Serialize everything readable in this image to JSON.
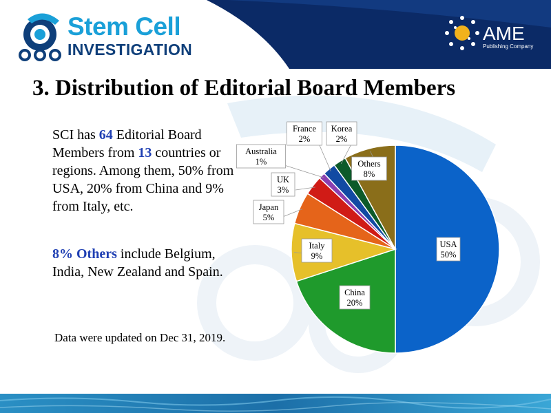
{
  "header": {
    "journal_name": "Stem Cell",
    "journal_subtitle": "INVESTIGATION",
    "publisher_name": "AME",
    "publisher_subtitle": "Publishing Company",
    "logo_icon": "stem-cell-gear-logo",
    "publisher_icon": "ame-dots-logo",
    "colors": {
      "header_bg": "#0b2a66",
      "brand_blue": "#1aa0d8",
      "brand_navy": "#0f3f7a"
    }
  },
  "slide": {
    "title": "3. Distribution of Editorial Board Members",
    "paragraph1": {
      "before_64": "SCI has ",
      "num_members": "64",
      "mid": " Editorial Board Members from ",
      "num_countries": "13",
      "after": " countries or regions. Among them, 50% from USA, 20% from China and 9% from Italy, etc."
    },
    "paragraph2": {
      "highlight": "8% Others",
      "rest": " include Belgium, India, New Zealand and Spain."
    },
    "note": "Data were updated on Dec 31, 2019."
  },
  "chart_data": {
    "type": "pie",
    "title": "",
    "slices": [
      {
        "label": "USA",
        "value": 50,
        "display": "50%",
        "color": "#0b63c9"
      },
      {
        "label": "China",
        "value": 20,
        "display": "20%",
        "color": "#1f9a2c"
      },
      {
        "label": "Italy",
        "value": 9,
        "display": "9%",
        "color": "#e6c02a"
      },
      {
        "label": "Japan",
        "value": 5,
        "display": "5%",
        "color": "#e5641a"
      },
      {
        "label": "UK",
        "value": 3,
        "display": "3%",
        "color": "#d01b16"
      },
      {
        "label": "Australia",
        "value": 1,
        "display": "1%",
        "color": "#8b3fb0"
      },
      {
        "label": "France",
        "value": 2,
        "display": "2%",
        "color": "#124aa3"
      },
      {
        "label": "Korea",
        "value": 2,
        "display": "2%",
        "color": "#0c5a2a"
      },
      {
        "label": "Others",
        "value": 8,
        "display": "8%",
        "color": "#8a6e1a"
      }
    ],
    "start_angle_deg": 0,
    "direction": "clockwise-from-top",
    "legend": "none"
  }
}
